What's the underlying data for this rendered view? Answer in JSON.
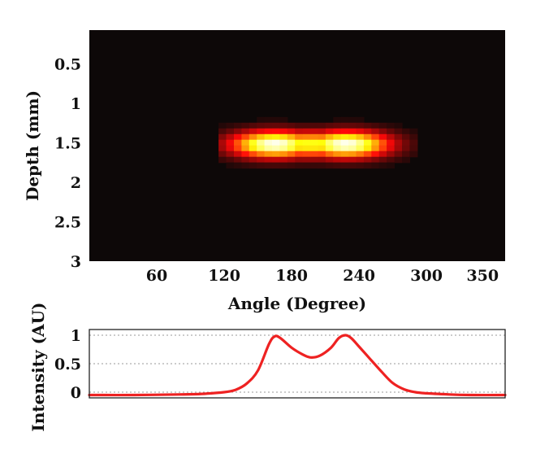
{
  "chart_data": [
    {
      "type": "heatmap",
      "title": "",
      "xlabel": "Angle (Degree)",
      "ylabel": "Depth (mm)",
      "xlim": [
        0,
        370
      ],
      "ylim": [
        0.07,
        3.0
      ],
      "y_inverted": true,
      "x_ticks": [
        60,
        120,
        180,
        240,
        300,
        350
      ],
      "y_ticks": [
        "0.5",
        "1",
        "1.5",
        "2",
        "2.5",
        "3"
      ],
      "colormap": "hot",
      "background_color": "#0d0808",
      "hot_spots": [
        {
          "angle": 165,
          "depth": 1.52,
          "intensity": 1.0
        },
        {
          "angle": 228,
          "depth": 1.52,
          "intensity": 1.0
        }
      ],
      "spot_extent": {
        "angle_min": 140,
        "angle_max": 265,
        "depth_min": 1.3,
        "depth_max": 1.75
      }
    },
    {
      "type": "line",
      "title": "",
      "xlabel": "",
      "ylabel": "Intensity (AU)",
      "xlim": [
        0,
        370
      ],
      "ylim": [
        -0.1,
        1.1
      ],
      "y_ticks": [
        "0",
        "0.5",
        "1"
      ],
      "grid": true,
      "series": [
        {
          "color": "#ee2222",
          "x": [
            0,
            40,
            80,
            100,
            120,
            130,
            140,
            150,
            160,
            165,
            170,
            180,
            190,
            197,
            205,
            215,
            222,
            228,
            233,
            240,
            250,
            260,
            270,
            280,
            290,
            300,
            320,
            340,
            370
          ],
          "y": [
            -0.05,
            -0.05,
            -0.04,
            -0.03,
            0.0,
            0.04,
            0.15,
            0.38,
            0.85,
            0.98,
            0.95,
            0.78,
            0.66,
            0.61,
            0.64,
            0.78,
            0.95,
            1.0,
            0.95,
            0.8,
            0.58,
            0.36,
            0.16,
            0.05,
            0.0,
            -0.02,
            -0.04,
            -0.05,
            -0.05
          ]
        }
      ]
    }
  ]
}
